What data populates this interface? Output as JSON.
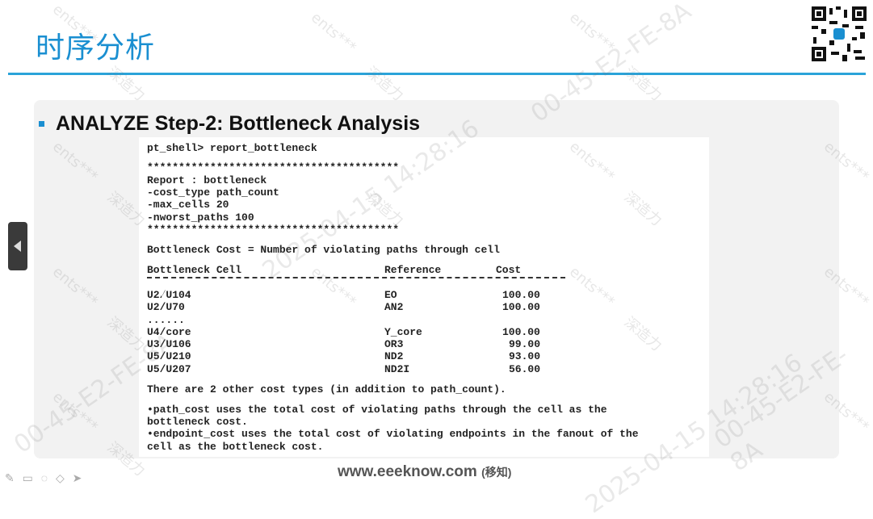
{
  "slide": {
    "title": "时序分析",
    "heading": "ANALYZE Step-2: Bottleneck Analysis",
    "footer_site": "www.eeeknow.com",
    "footer_brand": "(移知)"
  },
  "code": {
    "command": "pt_shell> report_bottleneck",
    "stars": "****************************************",
    "report": [
      "Report : bottleneck",
      "-cost_type path_count",
      "-max_cells 20",
      "-nworst_paths 100"
    ],
    "definition": "Bottleneck Cost = Number of violating paths through cell",
    "headers": [
      "Bottleneck Cell",
      "Reference",
      "Cost"
    ],
    "rows": [
      {
        "cell": "U2/U104",
        "ref": "EO",
        "cost": "100.00",
        "highlight": true
      },
      {
        "cell": "U2/U70",
        "ref": "AN2",
        "cost": "100.00",
        "highlight": false
      },
      {
        "cell": "......",
        "ref": "",
        "cost": "",
        "highlight": false
      },
      {
        "cell": "U4/core",
        "ref": "Y_core",
        "cost": "100.00",
        "highlight": false
      },
      {
        "cell": "U3/U106",
        "ref": "OR3",
        "cost": "99.00",
        "highlight": false
      },
      {
        "cell": "U5/U210",
        "ref": "ND2",
        "cost": "93.00",
        "highlight": false
      },
      {
        "cell": "U5/U207",
        "ref": "ND2I",
        "cost": "56.00",
        "highlight": false
      }
    ],
    "other": "There are 2 other cost types (in addition to path_count).",
    "note1_a": "•path_cost uses the total cost of violating paths through the cell as the",
    "note1_b": "bottleneck cost.",
    "note2_a": "•endpoint_cost uses the total cost of violating endpoints in the fanout of the",
    "note2_b": "cell as the bottleneck cost."
  },
  "watermark": {
    "user": "ents***",
    "brand": "深造力",
    "stamp": "2025-04-15 14:28:16",
    "mac": "00-45-E2-FE-8A"
  },
  "icons": [
    "pen-icon",
    "eraser-icon",
    "highlighter-icon",
    "shape-icon",
    "pointer-icon"
  ],
  "colors": {
    "title": "#1a8fd1",
    "accent_rule": "#2aa3d9",
    "highlight": "#b030b0"
  }
}
